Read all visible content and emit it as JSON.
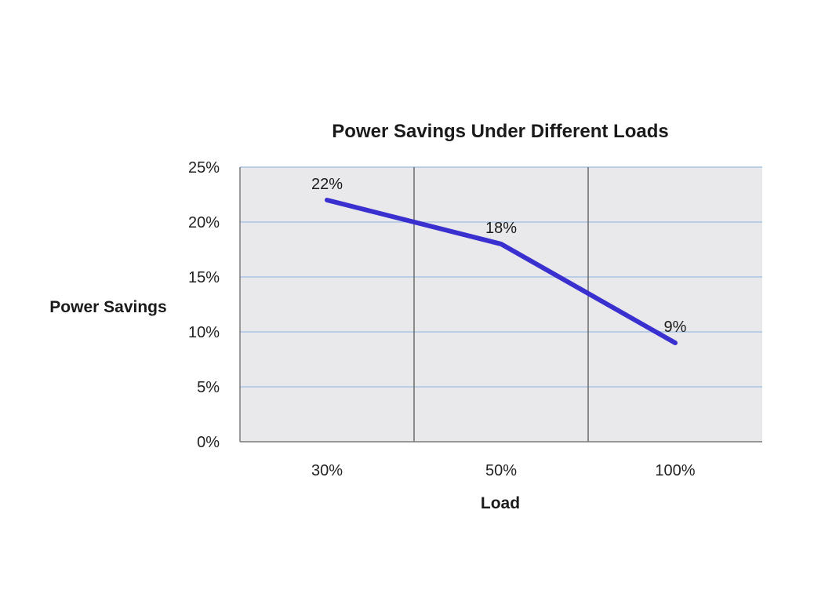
{
  "chart_data": {
    "type": "line",
    "title": "Power Savings Under Different Loads",
    "xlabel": "Load",
    "ylabel": "Power Savings",
    "categories": [
      "30%",
      "50%",
      "100%"
    ],
    "series": [
      {
        "values": [
          22,
          18,
          9
        ],
        "data_labels": [
          "22%",
          "18%",
          "9%"
        ],
        "color": "#3a30cf"
      }
    ],
    "ylim": [
      0,
      25
    ],
    "y_ticks": [
      0,
      5,
      10,
      15,
      20,
      25
    ],
    "y_tick_labels": [
      "0%",
      "5%",
      "10%",
      "15%",
      "20%",
      "25%"
    ],
    "grid": true,
    "legend": "none",
    "plot_background": "#e9e9eb",
    "gridline_color": "#a9c4e6"
  }
}
